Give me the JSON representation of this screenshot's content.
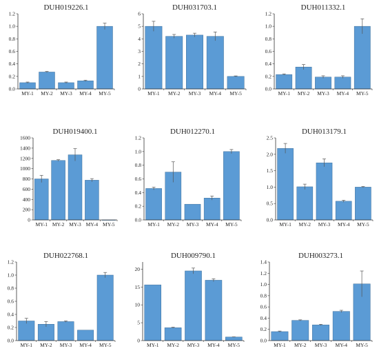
{
  "figure": {
    "background": "#ffffff",
    "bar_color": "#5b9bd5",
    "bar_edge": "#3f6f99",
    "axis_color": "#333333"
  },
  "chart_data": [
    {
      "type": "bar",
      "title": "DUH019226.1",
      "categories": [
        "MY-1",
        "MY-2",
        "MY-3",
        "MY-4",
        "MY-5"
      ],
      "values": [
        0.1,
        0.27,
        0.1,
        0.13,
        1.0
      ],
      "errors": [
        0.01,
        0.01,
        0.01,
        0.01,
        0.05
      ],
      "ylim": [
        0,
        1.2
      ],
      "yticks": [
        "0.0",
        "0.2",
        "0.4",
        "0.6",
        "0.8",
        "1.0",
        "1.2"
      ],
      "ytick_values": [
        0,
        0.2,
        0.4,
        0.6,
        0.8,
        1.0,
        1.2
      ]
    },
    {
      "type": "bar",
      "title": "DUH031703.1",
      "categories": [
        "MY-1",
        "MY-2",
        "MY-3",
        "MY-4",
        "MY-5"
      ],
      "values": [
        5.0,
        4.2,
        4.3,
        4.2,
        1.0
      ],
      "errors": [
        0.4,
        0.15,
        0.15,
        0.35,
        0.04
      ],
      "ylim": [
        0,
        6
      ],
      "yticks": [
        "0",
        "1",
        "2",
        "3",
        "4",
        "5",
        "6"
      ],
      "ytick_values": [
        0,
        1,
        2,
        3,
        4,
        5,
        6
      ]
    },
    {
      "type": "bar",
      "title": "DUH011332.1",
      "categories": [
        "MY-1",
        "MY-2",
        "MY-3",
        "MY-4",
        "MY-5"
      ],
      "values": [
        0.23,
        0.35,
        0.19,
        0.19,
        1.0
      ],
      "errors": [
        0.01,
        0.04,
        0.02,
        0.02,
        0.12
      ],
      "ylim": [
        0,
        1.2
      ],
      "yticks": [
        "0.0",
        "0.2",
        "0.4",
        "0.6",
        "0.8",
        "1.0",
        "1.2"
      ],
      "ytick_values": [
        0,
        0.2,
        0.4,
        0.6,
        0.8,
        1.0,
        1.2
      ]
    },
    {
      "type": "bar",
      "title": "DUH019400.1",
      "categories": [
        "MY-1",
        "MY-2",
        "MY-3",
        "MY-4",
        "MY-5"
      ],
      "values": [
        800,
        1160,
        1270,
        775,
        1
      ],
      "errors": [
        70,
        15,
        120,
        30,
        0
      ],
      "ylim": [
        0,
        1600
      ],
      "yticks": [
        "0",
        "200",
        "400",
        "600",
        "800",
        "1000",
        "1200",
        "1400",
        "1600"
      ],
      "ytick_values": [
        0,
        200,
        400,
        600,
        800,
        1000,
        1200,
        1400,
        1600
      ]
    },
    {
      "type": "bar",
      "title": "DUH012270.1",
      "categories": [
        "MY-1",
        "MY-2",
        "MY-3",
        "MY-4",
        "MY-5"
      ],
      "values": [
        0.46,
        0.7,
        0.23,
        0.32,
        1.0
      ],
      "errors": [
        0.02,
        0.15,
        0.0,
        0.03,
        0.03
      ],
      "ylim": [
        0,
        1.2
      ],
      "yticks": [
        "0.0",
        "0.2",
        "0.4",
        "0.6",
        "0.8",
        "1.0",
        "1.2"
      ],
      "ytick_values": [
        0,
        0.2,
        0.4,
        0.6,
        0.8,
        1.0,
        1.2
      ]
    },
    {
      "type": "bar",
      "title": "DUH013179.1",
      "categories": [
        "MY-1",
        "MY-2",
        "MY-3",
        "MY-4",
        "MY-5"
      ],
      "values": [
        2.18,
        1.01,
        1.74,
        0.57,
        1.0
      ],
      "errors": [
        0.15,
        0.08,
        0.12,
        0.03,
        0.02
      ],
      "ylim": [
        0,
        2.5
      ],
      "yticks": [
        "0.0",
        "0.5",
        "1.0",
        "1.5",
        "2.0",
        "2.5"
      ],
      "ytick_values": [
        0,
        0.5,
        1.0,
        1.5,
        2.0,
        2.5
      ]
    },
    {
      "type": "bar",
      "title": "DUH022768.1",
      "categories": [
        "MY-1",
        "MY-2",
        "MY-3",
        "MY-4",
        "MY-5"
      ],
      "values": [
        0.3,
        0.25,
        0.29,
        0.16,
        1.0
      ],
      "errors": [
        0.04,
        0.04,
        0.01,
        0.0,
        0.04
      ],
      "ylim": [
        0,
        1.2
      ],
      "yticks": [
        "0.0",
        "0.2",
        "0.4",
        "0.6",
        "0.8",
        "1.0",
        "1.2"
      ],
      "ytick_values": [
        0,
        0.2,
        0.4,
        0.6,
        0.8,
        1.0,
        1.2
      ]
    },
    {
      "type": "bar",
      "title": "DUH009790.1",
      "categories": [
        "MY-1",
        "MY-2",
        "MY-3",
        "MY-4",
        "MY-5"
      ],
      "values": [
        15.6,
        3.6,
        19.5,
        16.9,
        1.0
      ],
      "errors": [
        0.0,
        0.15,
        0.8,
        0.4,
        0.05
      ],
      "ylim": [
        0,
        22
      ],
      "yticks": [
        "0",
        "5",
        "10",
        "15",
        "20"
      ],
      "ytick_values": [
        0,
        5,
        10,
        15,
        20
      ]
    },
    {
      "type": "bar",
      "title": "DUH003273.1",
      "categories": [
        "MY-1",
        "MY-2",
        "MY-3",
        "MY-4",
        "MY-5"
      ],
      "values": [
        0.16,
        0.36,
        0.28,
        0.52,
        1.01
      ],
      "errors": [
        0.01,
        0.01,
        0.01,
        0.02,
        0.23
      ],
      "ylim": [
        0,
        1.4
      ],
      "yticks": [
        "0.0",
        "0.2",
        "0.4",
        "0.6",
        "0.8",
        "1.0",
        "1.2",
        "1.4"
      ],
      "ytick_values": [
        0,
        0.2,
        0.4,
        0.6,
        0.8,
        1.0,
        1.2,
        1.4
      ]
    }
  ]
}
